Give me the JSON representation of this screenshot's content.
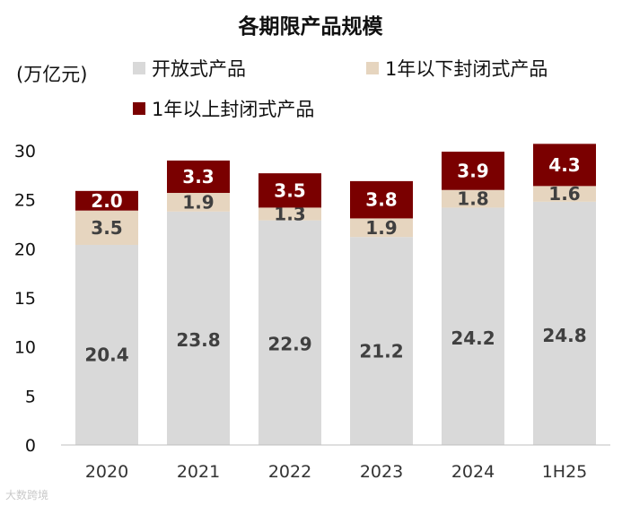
{
  "chart_data": {
    "type": "bar",
    "stacked": true,
    "title": "各期限产品规模",
    "unit_label": "(万亿元)",
    "categories": [
      "2020",
      "2021",
      "2022",
      "2023",
      "2024",
      "1H25"
    ],
    "ylim": [
      0,
      30
    ],
    "yticks": [
      0,
      5,
      10,
      15,
      20,
      25,
      30
    ],
    "grid": false,
    "legend_position": "top",
    "series": [
      {
        "name": "开放式产品",
        "color": "#d9d9d9",
        "label_color": "#404040",
        "values": [
          20.4,
          23.8,
          22.9,
          21.2,
          24.2,
          24.8
        ],
        "labels": [
          "20.4",
          "23.8",
          "22.9",
          "21.2",
          "24.2",
          "24.8"
        ]
      },
      {
        "name": "1年以下封闭式产品",
        "color": "#e6d5bf",
        "label_color": "#404040",
        "values": [
          3.5,
          1.9,
          1.3,
          1.9,
          1.8,
          1.6
        ],
        "labels": [
          "3.5",
          "1.9",
          "1.3",
          "1.9",
          "1.8",
          "1.6"
        ]
      },
      {
        "name": "1年以上封闭式产品",
        "color": "#7a0000",
        "label_color": "#ffffff",
        "values": [
          2.0,
          3.3,
          3.5,
          3.8,
          3.9,
          4.3
        ],
        "labels": [
          "2.0",
          "3.3",
          "3.5",
          "3.8",
          "3.9",
          "4.3"
        ]
      }
    ]
  },
  "watermark": "大数跨境"
}
